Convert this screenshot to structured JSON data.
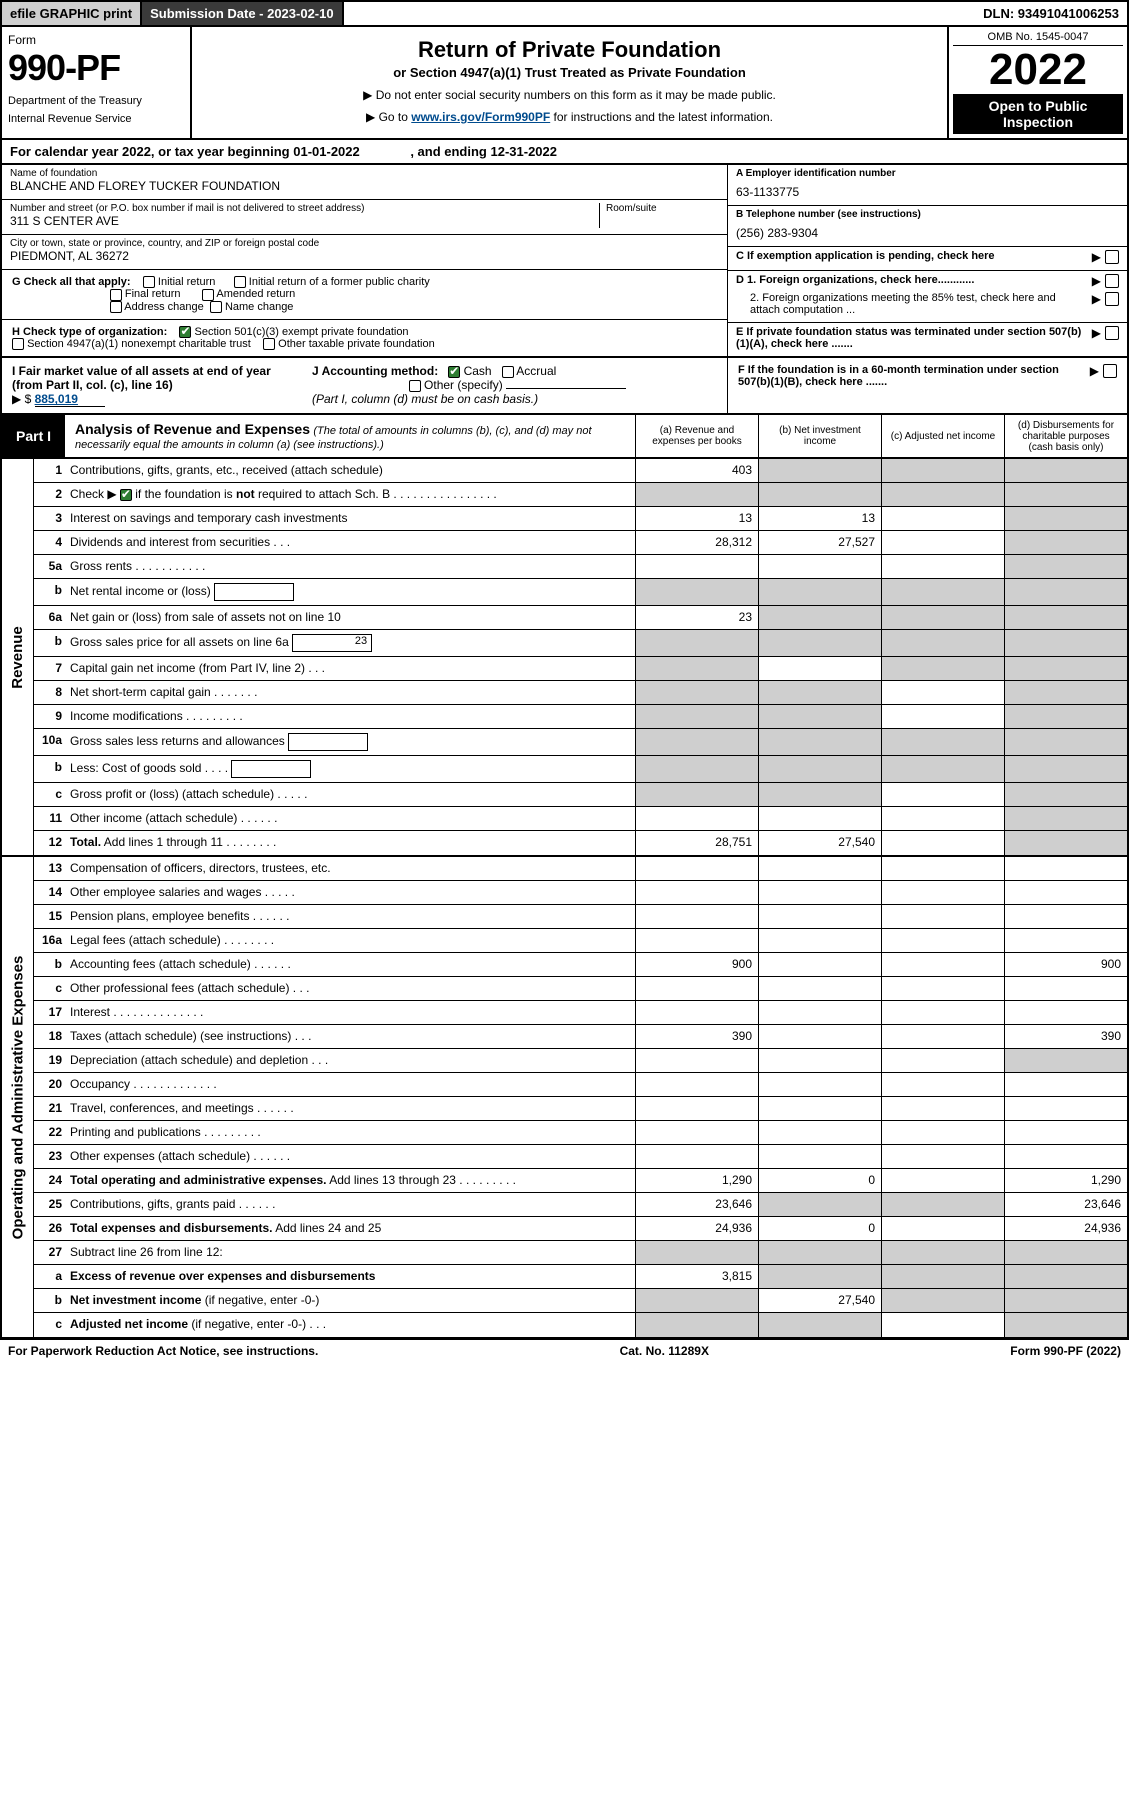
{
  "top": {
    "efile": "efile GRAPHIC print",
    "submission": "Submission Date - 2023-02-10",
    "dln": "DLN: 93491041006253"
  },
  "header": {
    "form_label": "Form",
    "form_number": "990-PF",
    "dept": "Department of the Treasury",
    "irs": "Internal Revenue Service",
    "title": "Return of Private Foundation",
    "subtitle": "or Section 4947(a)(1) Trust Treated as Private Foundation",
    "note1": "▶ Do not enter social security numbers on this form as it may be made public.",
    "note2_pre": "▶ Go to ",
    "note2_link": "www.irs.gov/Form990PF",
    "note2_post": " for instructions and the latest information.",
    "omb": "OMB No. 1545-0047",
    "year": "2022",
    "open": "Open to Public Inspection"
  },
  "calendar": {
    "line_pre": "For calendar year 2022, or tax year beginning ",
    "begin": "01-01-2022",
    "mid": ", and ending ",
    "end": "12-31-2022"
  },
  "foundation": {
    "name_lbl": "Name of foundation",
    "name": "BLANCHE AND FLOREY TUCKER FOUNDATION",
    "addr_lbl": "Number and street (or P.O. box number if mail is not delivered to street address)",
    "addr": "311 S CENTER AVE",
    "room_lbl": "Room/suite",
    "city_lbl": "City or town, state or province, country, and ZIP or foreign postal code",
    "city": "PIEDMONT, AL  36272"
  },
  "right_info": {
    "a_lbl": "A Employer identification number",
    "a_val": "63-1133775",
    "b_lbl": "B Telephone number (see instructions)",
    "b_val": "(256) 283-9304",
    "c_lbl": "C If exemption application is pending, check here",
    "d1": "D 1. Foreign organizations, check here............",
    "d2": "2. Foreign organizations meeting the 85% test, check here and attach computation ...",
    "e": "E  If private foundation status was terminated under section 507(b)(1)(A), check here .......",
    "f": "F  If the foundation is in a 60-month termination under section 507(b)(1)(B), check here ......."
  },
  "g_block": {
    "g_lbl": "G Check all that apply:",
    "opts": [
      "Initial return",
      "Final return",
      "Address change",
      "Initial return of a former public charity",
      "Amended return",
      "Name change"
    ],
    "h_lbl": "H Check type of organization:",
    "h1": "Section 501(c)(3) exempt private foundation",
    "h2": "Section 4947(a)(1) nonexempt charitable trust",
    "h3": "Other taxable private foundation",
    "i_lbl": "I Fair market value of all assets at end of year (from Part II, col. (c), line 16)",
    "i_val": "885,019",
    "j_lbl": "J Accounting method:",
    "j_cash": "Cash",
    "j_accrual": "Accrual",
    "j_other": "Other (specify)",
    "j_note": "(Part I, column (d) must be on cash basis.)"
  },
  "part1": {
    "badge": "Part I",
    "title": "Analysis of Revenue and Expenses",
    "note": "(The total of amounts in columns (b), (c), and (d) may not necessarily equal the amounts in column (a) (see instructions).)",
    "col_a": "(a)  Revenue and expenses per books",
    "col_b": "(b)  Net investment income",
    "col_c": "(c)  Adjusted net income",
    "col_d": "(d)  Disbursements for charitable purposes (cash basis only)"
  },
  "sections": {
    "revenue": "Revenue",
    "expenses": "Operating and Administrative Expenses"
  },
  "rows": [
    {
      "n": "1",
      "desc": "Contributions, gifts, grants, etc., received (attach schedule)",
      "a": "403",
      "shade": [
        "b",
        "c",
        "d"
      ]
    },
    {
      "n": "2",
      "desc": "Check ▶ ☑ if the foundation is <b>not</b> required to attach Sch. B   .  .  .  .  .  .  .  .  .  .  .  .  .  .  .  .",
      "noval": true,
      "shade": [
        "a",
        "b",
        "c",
        "d"
      ],
      "check": true
    },
    {
      "n": "3",
      "desc": "Interest on savings and temporary cash investments",
      "a": "13",
      "b": "13",
      "shade": [
        "d"
      ]
    },
    {
      "n": "4",
      "desc": "Dividends and interest from securities   .   .   .",
      "a": "28,312",
      "b": "27,527",
      "shade": [
        "d"
      ]
    },
    {
      "n": "5a",
      "desc": "Gross rents   .   .   .   .   .   .   .   .   .   .   .",
      "shade": [
        "d"
      ]
    },
    {
      "n": "b",
      "desc": "Net rental income or (loss)",
      "inline": "",
      "shade": [
        "a",
        "b",
        "c",
        "d"
      ]
    },
    {
      "n": "6a",
      "desc": "Net gain or (loss) from sale of assets not on line 10",
      "a": "23",
      "shade": [
        "b",
        "c",
        "d"
      ]
    },
    {
      "n": "b",
      "desc": "Gross sales price for all assets on line 6a",
      "inline": "23",
      "shade": [
        "a",
        "b",
        "c",
        "d"
      ]
    },
    {
      "n": "7",
      "desc": "Capital gain net income (from Part IV, line 2)   .   .   .",
      "shade": [
        "a",
        "c",
        "d"
      ]
    },
    {
      "n": "8",
      "desc": "Net short-term capital gain  .   .   .   .   .   .   .",
      "shade": [
        "a",
        "b",
        "d"
      ]
    },
    {
      "n": "9",
      "desc": "Income modifications  .   .   .   .   .   .   .   .   .",
      "shade": [
        "a",
        "b",
        "d"
      ]
    },
    {
      "n": "10a",
      "desc": "Gross sales less returns and allowances",
      "inline": "",
      "shade": [
        "a",
        "b",
        "c",
        "d"
      ]
    },
    {
      "n": "b",
      "desc": "Less: Cost of goods sold    .   .   .   .",
      "inline": "",
      "shade": [
        "a",
        "b",
        "c",
        "d"
      ]
    },
    {
      "n": "c",
      "desc": "Gross profit or (loss) (attach schedule)   .   .   .   .   .",
      "shade": [
        "a",
        "b",
        "d"
      ]
    },
    {
      "n": "11",
      "desc": "Other income (attach schedule)   .   .   .   .   .   .",
      "shade": [
        "d"
      ]
    },
    {
      "n": "12",
      "desc": "<b>Total.</b> Add lines 1 through 11   .   .   .   .   .   .   .   .",
      "a": "28,751",
      "b": "27,540",
      "shade": [
        "d"
      ]
    }
  ],
  "exp_rows": [
    {
      "n": "13",
      "desc": "Compensation of officers, directors, trustees, etc."
    },
    {
      "n": "14",
      "desc": "Other employee salaries and wages   .   .   .   .   ."
    },
    {
      "n": "15",
      "desc": "Pension plans, employee benefits  .   .   .   .   .   ."
    },
    {
      "n": "16a",
      "desc": "Legal fees (attach schedule)  .   .   .   .   .   .   .   ."
    },
    {
      "n": "b",
      "desc": "Accounting fees (attach schedule)  .   .   .   .   .   .",
      "a": "900",
      "d": "900"
    },
    {
      "n": "c",
      "desc": "Other professional fees (attach schedule)   .   .   ."
    },
    {
      "n": "17",
      "desc": "Interest  .   .   .   .   .   .   .   .   .   .   .   .   .   ."
    },
    {
      "n": "18",
      "desc": "Taxes (attach schedule) (see instructions)    .   .   .",
      "a": "390",
      "d": "390"
    },
    {
      "n": "19",
      "desc": "Depreciation (attach schedule) and depletion   .   .   .",
      "shade": [
        "d"
      ]
    },
    {
      "n": "20",
      "desc": "Occupancy  .   .   .   .   .   .   .   .   .   .   .   .   ."
    },
    {
      "n": "21",
      "desc": "Travel, conferences, and meetings  .   .   .   .   .   ."
    },
    {
      "n": "22",
      "desc": "Printing and publications  .   .   .   .   .   .   .   .   ."
    },
    {
      "n": "23",
      "desc": "Other expenses (attach schedule)  .   .   .   .   .   ."
    },
    {
      "n": "24",
      "desc": "<b>Total operating and administrative expenses.</b> Add lines 13 through 23   .   .   .   .   .   .   .   .   .",
      "a": "1,290",
      "b": "0",
      "d": "1,290"
    },
    {
      "n": "25",
      "desc": "Contributions, gifts, grants paid    .   .   .   .   .   .",
      "a": "23,646",
      "d": "23,646",
      "shade": [
        "b",
        "c"
      ]
    },
    {
      "n": "26",
      "desc": "<b>Total expenses and disbursements.</b> Add lines 24 and 25",
      "a": "24,936",
      "b": "0",
      "d": "24,936"
    },
    {
      "n": "27",
      "desc": "Subtract line 26 from line 12:",
      "shade": [
        "a",
        "b",
        "c",
        "d"
      ]
    },
    {
      "n": "a",
      "desc": "<b>Excess of revenue over expenses and disbursements</b>",
      "a": "3,815",
      "shade": [
        "b",
        "c",
        "d"
      ]
    },
    {
      "n": "b",
      "desc": "<b>Net investment income</b> (if negative, enter -0-)",
      "b": "27,540",
      "shade": [
        "a",
        "c",
        "d"
      ]
    },
    {
      "n": "c",
      "desc": "<b>Adjusted net income</b> (if negative, enter -0-)   .   .   .",
      "shade": [
        "a",
        "b",
        "d"
      ]
    }
  ],
  "footer": {
    "left": "For Paperwork Reduction Act Notice, see instructions.",
    "mid": "Cat. No. 11289X",
    "right": "Form 990-PF (2022)"
  },
  "colors": {
    "shade": "#cfcfcf",
    "link": "#004b8d"
  }
}
